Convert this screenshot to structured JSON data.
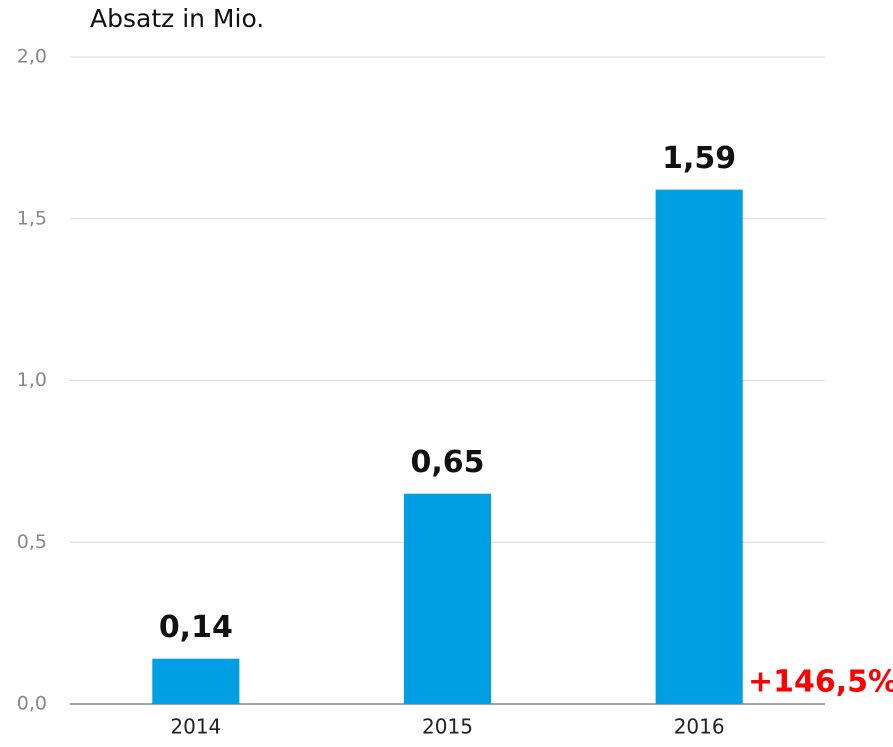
{
  "chart_data": {
    "type": "bar",
    "title": "Absatz in Mio.",
    "categories": [
      "2014",
      "2015",
      "2016"
    ],
    "values": [
      0.14,
      0.65,
      1.59
    ],
    "value_labels": [
      "0,14",
      "0,65",
      "1,59"
    ],
    "color": "#009fe3",
    "ylim": [
      0,
      2
    ],
    "yticks": [
      {
        "value": 0,
        "label": "0,0"
      },
      {
        "value": 0.5,
        "label": "0,5"
      },
      {
        "value": 1,
        "label": "1,0"
      },
      {
        "value": 1.5,
        "label": "1,5"
      },
      {
        "value": 2,
        "label": "2,0"
      }
    ],
    "grid": true,
    "annotation": "+146,5%",
    "annotation_color": "#ff0000"
  }
}
